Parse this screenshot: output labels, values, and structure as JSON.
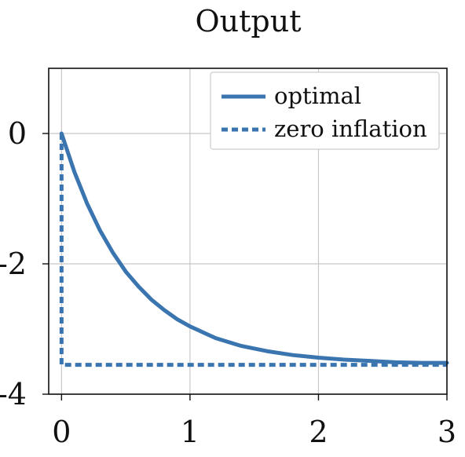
{
  "chart_data": {
    "type": "line",
    "title": "Output",
    "xlabel": "",
    "ylabel": "",
    "xlim": [
      -0.1,
      3
    ],
    "ylim": [
      -4,
      1
    ],
    "xticks": [
      0,
      1,
      2,
      3
    ],
    "xtick_labels": [
      "0",
      "1",
      "2",
      "3"
    ],
    "yticks": [
      0,
      -2,
      -4
    ],
    "ytick_labels": [
      "0",
      "-2",
      "-4"
    ],
    "grid": true,
    "legend_position": "top-right",
    "line_color": "#3a75b0",
    "series": [
      {
        "name": "optimal",
        "style": "solid",
        "x": [
          0,
          0.1,
          0.2,
          0.3,
          0.4,
          0.5,
          0.6,
          0.7,
          0.8,
          0.9,
          1.0,
          1.2,
          1.4,
          1.6,
          1.8,
          2.0,
          2.2,
          2.4,
          2.6,
          2.8,
          3.0
        ],
        "y": [
          0,
          -0.59,
          -1.08,
          -1.49,
          -1.83,
          -2.12,
          -2.35,
          -2.55,
          -2.71,
          -2.85,
          -2.96,
          -3.14,
          -3.26,
          -3.34,
          -3.4,
          -3.44,
          -3.47,
          -3.49,
          -3.51,
          -3.52,
          -3.52
        ]
      },
      {
        "name": "zero inflation",
        "style": "dashed",
        "x": [
          0,
          0,
          3.0
        ],
        "y": [
          0,
          -3.55,
          -3.55
        ]
      }
    ]
  }
}
